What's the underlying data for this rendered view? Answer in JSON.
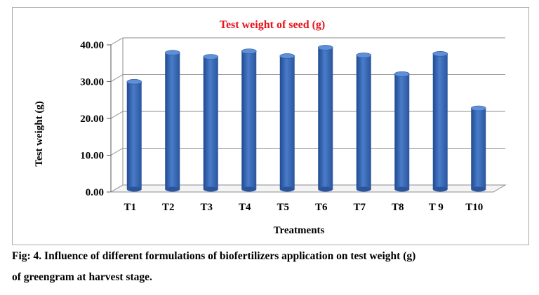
{
  "chart_data": {
    "type": "bar",
    "title": "Test weight  of seed (g)",
    "xlabel": "Treatments",
    "ylabel": "Test weight  (g)",
    "categories": [
      "T1",
      "T2",
      "T3",
      "T4",
      "T5",
      "T6",
      "T7",
      "T8",
      "T 9",
      "T10"
    ],
    "values": [
      29.2,
      37.1,
      36.0,
      37.5,
      36.2,
      38.5,
      36.4,
      31.3,
      36.8,
      22.0
    ],
    "ylim": [
      0,
      40
    ],
    "yticks": [
      "0.00",
      "10.00",
      "20.00",
      "30.00",
      "40.00"
    ],
    "grid": true,
    "legend": "none",
    "style": "3d-cylinder",
    "colors": {
      "bar": "#3a68b4",
      "title": "#e8141c",
      "grid": "#8c8c8c"
    }
  },
  "caption": {
    "line1": "Fig: 4. Influence of different formulations of biofertilizers application on test weight (g)",
    "line2": "of greengram at harvest stage."
  }
}
